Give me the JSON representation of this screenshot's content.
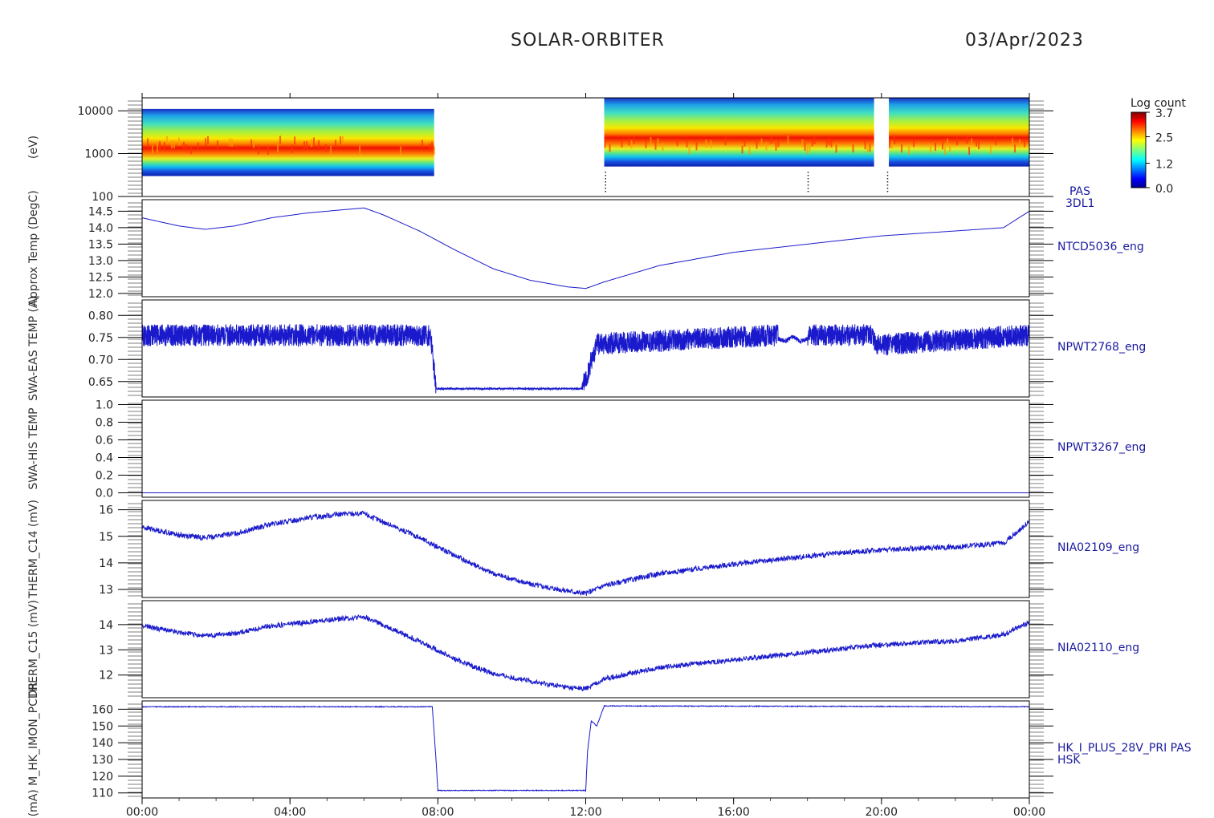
{
  "header": {
    "title": "SOLAR-ORBITER",
    "date": "03/Apr/2023"
  },
  "colors": {
    "axis": "#000000",
    "trace": "#1a1acc",
    "label_right": "#1a1aa0",
    "background": "#ffffff"
  },
  "x_axis": {
    "ticks": [
      "00:00",
      "04:00",
      "08:00",
      "12:00",
      "16:00",
      "20:00",
      "00:00"
    ],
    "range_hours": [
      0,
      24
    ]
  },
  "colorbar": {
    "title": "Log count",
    "ticks": [
      "3.7",
      "2.5",
      "1.2",
      "0.0"
    ],
    "range": [
      0.0,
      3.7
    ]
  },
  "panels": [
    {
      "id": "pas",
      "ylabel": "(eV)",
      "right_label": [
        "PAS",
        "3DL1"
      ],
      "ytick_labels": [
        "10000",
        "1000",
        "100"
      ]
    },
    {
      "id": "ntcd5036",
      "ylabel": "Approx Temp (DegC)",
      "right_label": [
        "NTCD5036_eng"
      ],
      "ytick_labels": [
        "14.5",
        "14.0",
        "13.5",
        "13.0",
        "12.5",
        "12.0"
      ]
    },
    {
      "id": "npwt2768",
      "ylabel": "SWA-EAS TEMP (A)",
      "right_label": [
        "NPWT2768_eng"
      ],
      "ytick_labels": [
        "0.80",
        "0.75",
        "0.70",
        "0.65"
      ]
    },
    {
      "id": "npwt3267",
      "ylabel": "SWA-HIS TEMP",
      "right_label": [
        "NPWT3267_eng"
      ],
      "ytick_labels": [
        "1.0",
        "0.8",
        "0.6",
        "0.4",
        "0.2",
        "0.0"
      ]
    },
    {
      "id": "nia02109",
      "ylabel": "THERM_C14 (mV)",
      "right_label": [
        "NIA02109_eng"
      ],
      "ytick_labels": [
        "16",
        "15",
        "14",
        "13"
      ]
    },
    {
      "id": "nia02110",
      "ylabel": "THERM_C15 (mV)",
      "right_label": [
        "NIA02110_eng"
      ],
      "ytick_labels": [
        "14",
        "13",
        "12"
      ]
    },
    {
      "id": "hk",
      "ylabel": "(mA) M_HK_IMON_PCDR",
      "right_label": [
        "HK_I_PLUS_28V_PRI PAS",
        "HSK"
      ],
      "ytick_labels": [
        "160",
        "150",
        "140",
        "130",
        "120",
        "110"
      ]
    }
  ],
  "chart_data": [
    {
      "type": "heatmap",
      "title": "PAS 3DL1",
      "ylabel": "(eV)",
      "y_scale": "log",
      "ylim": [
        100,
        20000
      ],
      "colorbar": {
        "label": "Log count",
        "range": [
          0.0,
          3.7
        ]
      },
      "data_segments_hours": [
        [
          0.0,
          7.9
        ],
        [
          12.5,
          19.8
        ],
        [
          20.2,
          24.0
        ]
      ],
      "peak_energy_eV": 1500,
      "energy_range_low_eV": [
        300,
        500
      ],
      "energy_range_high_eV": [
        11000,
        20000
      ]
    },
    {
      "type": "line",
      "name": "NTCD5036_eng",
      "ylim": [
        11.9,
        14.85
      ],
      "x_hours": [
        0,
        1,
        1.7,
        2.5,
        3.5,
        4.5,
        5.5,
        6.0,
        6.5,
        7.5,
        8.5,
        9.5,
        10.5,
        11.5,
        12.0,
        12.5,
        14,
        16,
        18,
        20,
        22,
        23.3,
        24
      ],
      "y": [
        14.3,
        14.05,
        13.95,
        14.05,
        14.3,
        14.45,
        14.55,
        14.6,
        14.4,
        13.9,
        13.3,
        12.75,
        12.4,
        12.2,
        12.15,
        12.35,
        12.85,
        13.25,
        13.5,
        13.75,
        13.9,
        14.0,
        14.5
      ]
    },
    {
      "type": "line",
      "name": "NPWT2768_eng",
      "ylim": [
        0.615,
        0.835
      ],
      "x_hours": [
        0,
        7.8,
        7.95,
        11.9,
        12.05,
        12.3,
        17.2,
        17.4,
        17.6,
        17.8,
        18.0,
        19.75,
        19.9,
        20.1,
        24
      ],
      "y": [
        0.745,
        0.745,
        0.633,
        0.633,
        0.66,
        0.725,
        0.745,
        0.74,
        0.75,
        0.738,
        0.745,
        0.745,
        0.722,
        0.724,
        0.745
      ]
    },
    {
      "type": "line",
      "name": "NPWT3267_eng",
      "ylim": [
        -0.05,
        1.05
      ],
      "x_hours": [
        0,
        24
      ],
      "y": [
        0.0,
        0.0
      ]
    },
    {
      "type": "line",
      "name": "NIA02109_eng",
      "ylim": [
        12.7,
        16.35
      ],
      "x_hours": [
        0,
        1,
        1.7,
        2.5,
        3.5,
        4.5,
        5.5,
        6.0,
        6.5,
        7.5,
        8.5,
        9.5,
        10.5,
        11.5,
        12.0,
        12.5,
        14,
        16,
        18,
        20,
        22,
        23.3,
        24
      ],
      "y": [
        15.35,
        15.05,
        14.95,
        15.1,
        15.45,
        15.7,
        15.85,
        15.85,
        15.55,
        14.95,
        14.25,
        13.6,
        13.2,
        12.95,
        12.85,
        13.15,
        13.6,
        13.95,
        14.25,
        14.5,
        14.6,
        14.75,
        15.55
      ]
    },
    {
      "type": "line",
      "name": "NIA02110_eng",
      "ylim": [
        11.1,
        14.95
      ],
      "x_hours": [
        0,
        1,
        1.7,
        2.5,
        3.5,
        4.5,
        5.5,
        6.0,
        6.5,
        7.5,
        8.5,
        9.5,
        10.5,
        11.5,
        12.0,
        12.5,
        14,
        16,
        18,
        20,
        22,
        23.3,
        24
      ],
      "y": [
        13.95,
        13.7,
        13.55,
        13.65,
        13.95,
        14.1,
        14.25,
        14.3,
        14.0,
        13.35,
        12.6,
        12.05,
        11.75,
        11.5,
        11.45,
        11.85,
        12.3,
        12.6,
        12.9,
        13.2,
        13.35,
        13.6,
        14.1
      ]
    },
    {
      "type": "line",
      "name": "HK_I_PLUS_28V_PRI PAS HSK",
      "ylabel": "(mA)",
      "ylim": [
        107,
        165
      ],
      "x_hours": [
        0,
        7.85,
        7.95,
        8.0,
        12.0,
        12.05,
        12.15,
        12.3,
        12.5,
        24
      ],
      "y": [
        161.5,
        161.5,
        130,
        111.5,
        111.5,
        135,
        153,
        150,
        162,
        161.5
      ]
    }
  ]
}
